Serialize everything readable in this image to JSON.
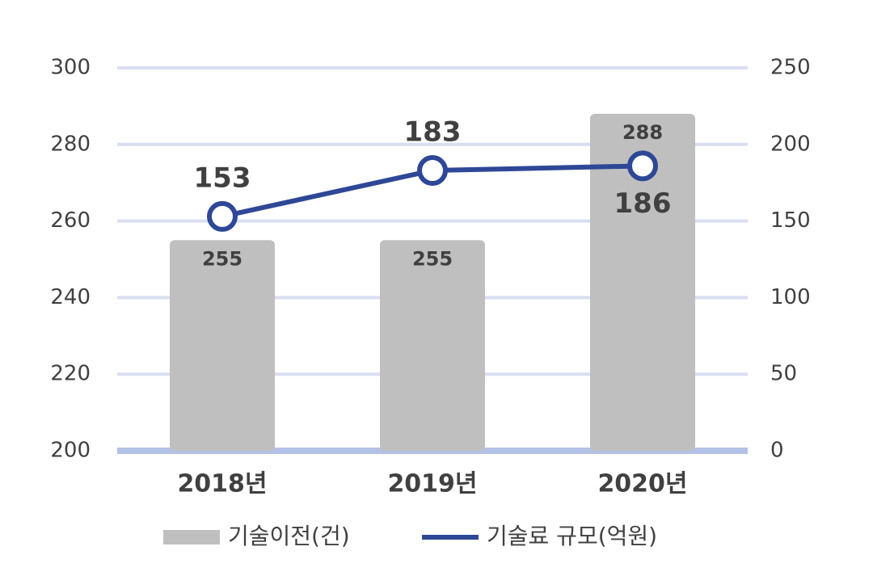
{
  "chart_data": {
    "type": "combo",
    "categories": [
      "2018년",
      "2019년",
      "2020년"
    ],
    "series": [
      {
        "name": "기술이전(건)",
        "type": "bar",
        "color": "#bfbfbf",
        "values": [
          255,
          255,
          288
        ]
      },
      {
        "name": "기술료 규모(억원)",
        "type": "line",
        "color": "#2e4796",
        "axis": "y2",
        "values": [
          153,
          183,
          186
        ]
      }
    ],
    "ylim": [
      200,
      300
    ],
    "yticks": [
      200,
      220,
      240,
      260,
      280,
      300
    ],
    "y2lim": [
      0,
      250
    ],
    "y2ticks": [
      0,
      50,
      100,
      150,
      200,
      250
    ],
    "grid": true,
    "legend": "bottom"
  }
}
